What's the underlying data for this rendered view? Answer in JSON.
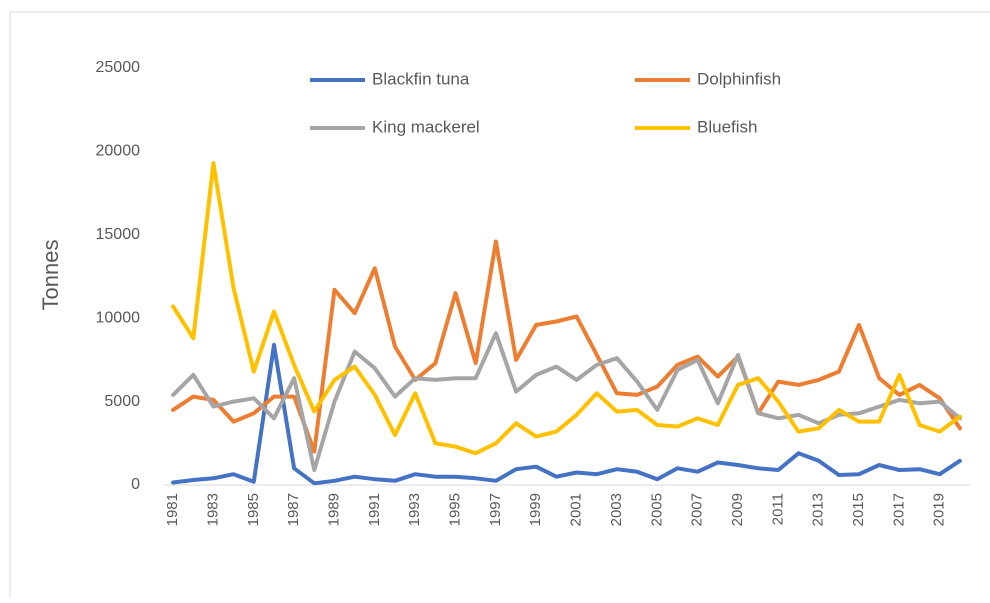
{
  "chart_data": {
    "type": "line",
    "y_label": "Tonnes",
    "categories": [
      1981,
      null,
      1983,
      null,
      1985,
      null,
      1987,
      null,
      1989,
      null,
      1991,
      null,
      1993,
      null,
      1995,
      null,
      1997,
      null,
      1999,
      null,
      2001,
      null,
      2003,
      null,
      2005,
      null,
      2007,
      null,
      2009,
      null,
      2011,
      null,
      2013,
      null,
      2015,
      null,
      2017,
      null,
      2019,
      null
    ],
    "ylim": [
      0,
      25000
    ],
    "yticks": [
      0,
      5000,
      10000,
      15000,
      20000,
      25000
    ],
    "grid": false,
    "legend": "top",
    "series": [
      {
        "name": "Blackfin tuna",
        "color": "#4472c4",
        "values": [
          150,
          300,
          400,
          650,
          200,
          8400,
          1000,
          100,
          250,
          500,
          350,
          250,
          650,
          500,
          500,
          400,
          250,
          950,
          1100,
          500,
          750,
          650,
          950,
          800,
          350,
          1000,
          800,
          1350,
          1200,
          1000,
          900,
          1900,
          1450,
          600,
          650,
          1200,
          900,
          950,
          650,
          1450
        ]
      },
      {
        "name": "Dolphinfish",
        "color": "#ed7d31",
        "values": [
          4500,
          5300,
          5100,
          3800,
          4300,
          5300,
          5300,
          2000,
          11700,
          10300,
          13000,
          8300,
          6300,
          7300,
          11500,
          7300,
          14600,
          7500,
          9600,
          9800,
          10100,
          7800,
          5500,
          5400,
          5900,
          7200,
          7700,
          6500,
          7700,
          4300,
          6200,
          6000,
          6300,
          6800,
          9600,
          6400,
          5400,
          6000,
          5200,
          3400
        ]
      },
      {
        "name": "King mackerel",
        "color": "#a5a5a5",
        "values": [
          5400,
          6600,
          4700,
          5000,
          5200,
          4000,
          6400,
          900,
          5000,
          8000,
          7000,
          5300,
          6400,
          6300,
          6400,
          6400,
          9100,
          5600,
          6600,
          7100,
          6300,
          7200,
          7600,
          6200,
          4500,
          6900,
          7500,
          4900,
          7800,
          4300,
          4000,
          4200,
          3700,
          4200,
          4300,
          4700,
          5100,
          4900,
          5000,
          4000
        ]
      },
      {
        "name": "Bluefish",
        "color": "#ffc000",
        "values": [
          10700,
          8800,
          19300,
          11800,
          6800,
          10400,
          7200,
          4400,
          6300,
          7100,
          5400,
          3000,
          5500,
          2500,
          2300,
          1900,
          2500,
          3700,
          2900,
          3200,
          4200,
          5500,
          4400,
          4500,
          3600,
          3500,
          4000,
          3600,
          6000,
          6400,
          5000,
          3200,
          3400,
          4500,
          3800,
          3800,
          6600,
          3600,
          3200,
          4100
        ]
      }
    ]
  }
}
